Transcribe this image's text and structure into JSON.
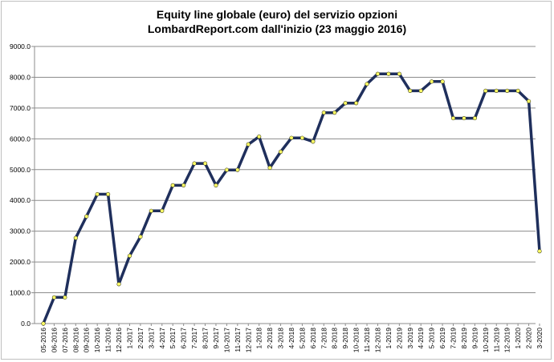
{
  "chart_data": {
    "type": "line",
    "title_lines": [
      "Equity line globale (euro) del servizio opzioni",
      "LombardReport.com dall'inizio (23 maggio 2016)"
    ],
    "xlabel": "",
    "ylabel": "",
    "ylim": [
      0,
      9000
    ],
    "yticks": [
      "0.0",
      "1000.0",
      "2000.0",
      "3000.0",
      "4000.0",
      "5000.0",
      "6000.0",
      "7000.0",
      "8000.0",
      "9000.0"
    ],
    "grid": true,
    "legend": "none",
    "line_color": "#1f2f5c",
    "marker_color": "#ffff66",
    "x": [
      "05-2016",
      "06-2016",
      "07-2016",
      "08-2016",
      "09-2016",
      "10-2016",
      "11-2016",
      "12-2016",
      "1-2017",
      "2-2017",
      "3-2017",
      "4-2017",
      "5-2017",
      "6-2017",
      "7-2017",
      "8-2017",
      "9-2017",
      "10-2017",
      "11-2017",
      "12-2017",
      "1-2018",
      "2-2018",
      "3-2018",
      "4-2018",
      "5-2018",
      "6-2018",
      "7-2018",
      "8-2018",
      "9-2018",
      "10-2018",
      "11-2018",
      "12-2018",
      "1-2019",
      "2-2019",
      "3-2019",
      "4-2019",
      "5-2019",
      "6-2019",
      "7-2019",
      "8-2019",
      "9-2019",
      "10-2019",
      "11-2019",
      "12-2019",
      "1-2020",
      "2-2020",
      "3-2020"
    ],
    "values": [
      0,
      850,
      850,
      2780,
      3480,
      4200,
      4200,
      1280,
      2200,
      2820,
      3660,
      3660,
      4490,
      4490,
      5200,
      5200,
      4490,
      4990,
      4990,
      5820,
      6070,
      5060,
      5580,
      6030,
      6030,
      5910,
      6850,
      6850,
      7160,
      7160,
      7780,
      8110,
      8110,
      8110,
      7560,
      7560,
      7860,
      7860,
      6670,
      6670,
      6670,
      7560,
      7560,
      7560,
      7560,
      7220,
      2350
    ]
  }
}
